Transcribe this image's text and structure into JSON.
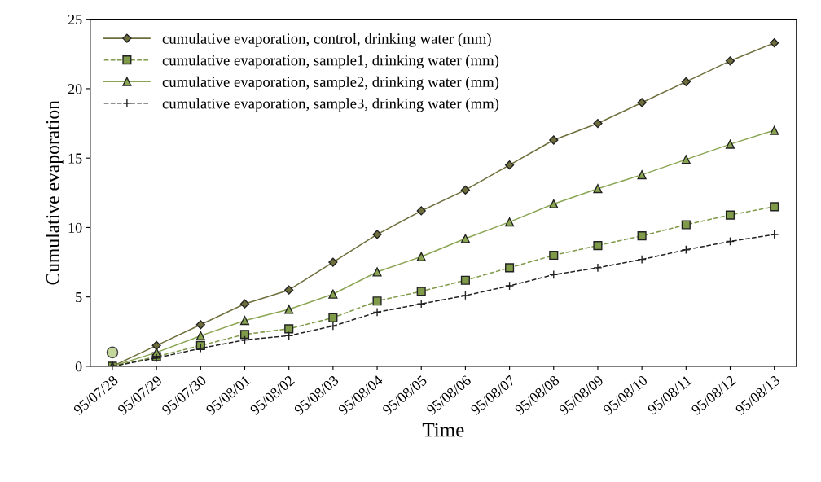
{
  "chart_data": {
    "type": "line",
    "xlabel": "Time",
    "ylabel": "Cumulative evaporation",
    "categories": [
      "95/07/28",
      "95/07/29",
      "95/07/30",
      "95/08/01",
      "95/08/02",
      "95/08/03",
      "95/08/04",
      "95/08/05",
      "95/08/06",
      "95/08/07",
      "95/08/08",
      "95/08/09",
      "95/08/10",
      "95/08/11",
      "95/08/12",
      "95/08/13"
    ],
    "series": [
      {
        "name": "cumulative evaporation, control, drinking water (mm)",
        "color": "#6e6e3c",
        "marker": "diamond",
        "line_style": "solid",
        "values": [
          0,
          1.5,
          3.0,
          4.5,
          5.5,
          7.5,
          9.5,
          11.2,
          12.7,
          14.5,
          16.3,
          17.5,
          19.0,
          20.5,
          22.0,
          23.3
        ]
      },
      {
        "name": "cumulative evaporation, sample1, drinking water (mm)",
        "color": "#7f9a48",
        "marker": "square",
        "line_style": "dashed",
        "values": [
          0,
          0.7,
          1.5,
          2.3,
          2.7,
          3.5,
          4.7,
          5.4,
          6.2,
          7.1,
          8.0,
          8.7,
          9.4,
          10.2,
          10.9,
          11.5
        ]
      },
      {
        "name": "cumulative evaporation, sample2, drinking water (mm)",
        "color": "#8aa552",
        "marker": "triangle",
        "line_style": "solid",
        "values": [
          0,
          1.0,
          2.2,
          3.3,
          4.1,
          5.2,
          6.8,
          7.9,
          9.2,
          10.4,
          11.7,
          12.8,
          13.8,
          14.9,
          16.0,
          17.0
        ]
      },
      {
        "name": "cumulative evaporation, sample3, drinking water (mm)",
        "color": "#222222",
        "marker": "cross",
        "line_style": "dashed",
        "values": [
          0,
          0.6,
          1.3,
          1.9,
          2.2,
          2.9,
          3.9,
          4.5,
          5.1,
          5.8,
          6.6,
          7.1,
          7.7,
          8.4,
          9.0,
          9.5
        ]
      },
      {
        "type": "scatter",
        "color": "#c4d79b",
        "marker": "circle",
        "values": [
          1,
          null,
          null,
          null,
          null,
          null,
          null,
          null,
          null,
          null,
          null,
          null,
          null,
          null,
          null,
          null
        ]
      }
    ],
    "ylim": [
      0,
      25
    ],
    "yticks": [
      0,
      5,
      10,
      15,
      20,
      25
    ],
    "grid": false,
    "legend": "top left"
  }
}
